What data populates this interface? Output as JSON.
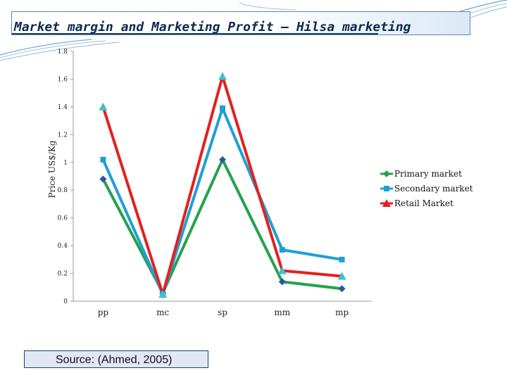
{
  "title": "Market margin and Marketing Profit – Hilsa marketing",
  "source": "Source: (Ahmed, 2005)",
  "chart_data": {
    "type": "line",
    "categories": [
      "pp",
      "mc",
      "sp",
      "mm",
      "mp"
    ],
    "ylabel": "Price US$/Kg",
    "xlabel": "",
    "ylim": [
      0,
      1.8
    ],
    "yticks": [
      "0",
      "0.2",
      "0.4",
      "0.6",
      "0.8",
      "1",
      "1.2",
      "1.4",
      "1.6",
      "1.8"
    ],
    "legend_position": "right",
    "series": [
      {
        "name": "Primary market",
        "values": [
          0.88,
          0.06,
          1.02,
          0.14,
          0.09
        ],
        "color": "#23a24d",
        "marker": "diamond",
        "marker_color": "#2b55a8"
      },
      {
        "name": "Secondary market",
        "values": [
          1.02,
          0.05,
          1.39,
          0.37,
          0.3
        ],
        "color": "#1f9fd6",
        "marker": "square",
        "marker_color": "#1f9fd6"
      },
      {
        "name": "Retail Market",
        "values": [
          1.4,
          0.05,
          1.62,
          0.22,
          0.18
        ],
        "color": "#e3211e",
        "marker": "triangle",
        "marker_color": "#3cc0d0"
      }
    ]
  }
}
